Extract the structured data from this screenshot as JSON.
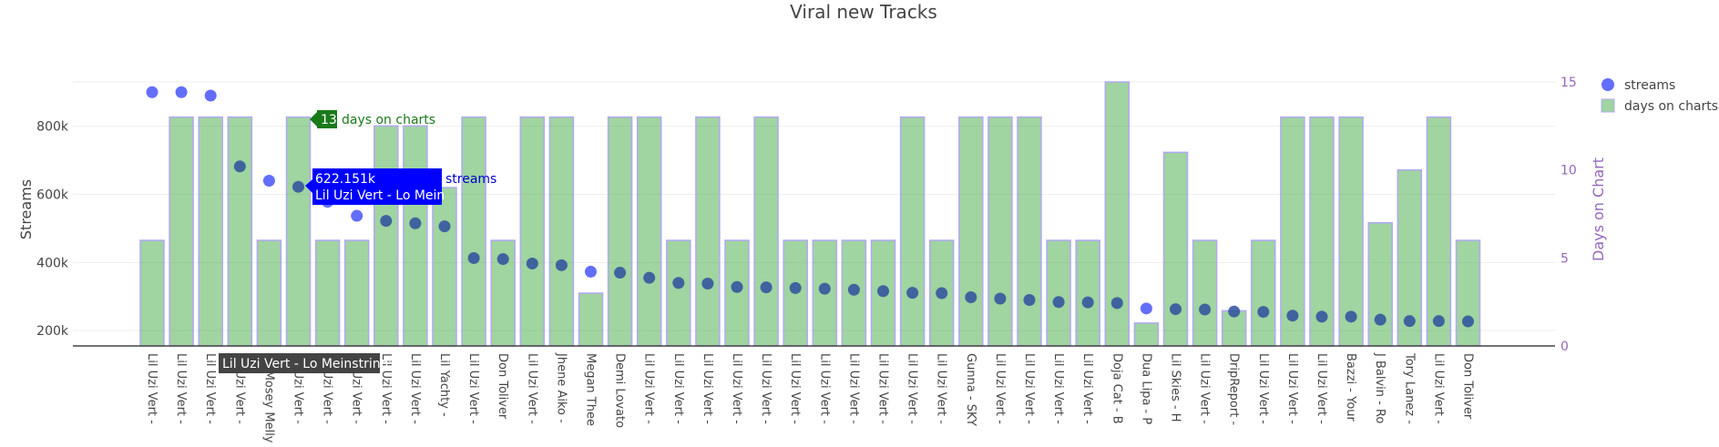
{
  "chart_data": {
    "type": "bar+scatter",
    "title": "Viral new Tracks",
    "xlabel": "",
    "ylabel": "Streams",
    "y2label": "Days on Chart",
    "ylim": [
      155000,
      930000
    ],
    "y2lim": [
      0,
      15
    ],
    "yticks": [
      200000,
      400000,
      600000,
      800000
    ],
    "ytick_labels": [
      "200k",
      "400k",
      "600k",
      "800k"
    ],
    "y2ticks": [
      0,
      5,
      10,
      15
    ],
    "y2tick_labels": [
      "0",
      "5",
      "10",
      "15"
    ],
    "grid": true,
    "legend_position": "top-right",
    "categories": [
      "Lil Uzi Vert -",
      "Lil Uzi Vert -",
      "Lil Uzi Vert -",
      "Lil Uzi Vert -",
      "Lil Mosey Melly -",
      "Lil Uzi Vert -",
      "Lil Uzi Vert -",
      "Lil Uzi Vert -",
      "Lil Uzi Vert -",
      "Lil Uzi Vert -",
      "Lil Yachty - ",
      "Lil Uzi Vert -",
      "Don Toliver",
      "Lil Uzi Vert -",
      "Jhene Aiko -",
      "Megan Thee",
      "Demi Lovato",
      "Lil Uzi Vert -",
      "Lil Uzi Vert -",
      "Lil Uzi Vert -",
      "Lil Uzi Vert -",
      "Lil Uzi Vert -",
      "Lil Uzi Vert -",
      "Lil Uzi Vert -",
      "Lil Uzi Vert -",
      "Lil Uzi Vert -",
      "Lil Uzi Vert -",
      "Lil Uzi Vert -",
      "Gunna - SKY",
      "Lil Uzi Vert -",
      "Lil Uzi Vert -",
      "Lil Uzi Vert -",
      "Lil Uzi Vert -",
      "Doja Cat - B",
      "Dua Lipa - P",
      "Lil Skies - H",
      "Lil Uzi Vert -",
      "DripReport -",
      "Lil Uzi Vert -",
      "Lil Uzi Vert -",
      "Lil Uzi Vert -",
      "Bazzi - Your",
      "J Balvin - Ro",
      "Tory Lanez -",
      "Lil Uzi Vert -",
      "Don Toliver"
    ],
    "series": [
      {
        "name": "days on charts",
        "type": "bar",
        "axis": "y2",
        "color": "#2ca02c",
        "values": [
          6,
          13,
          13,
          13,
          6,
          13,
          6,
          6,
          12.5,
          12.5,
          9,
          13,
          6,
          13,
          13,
          3,
          13,
          13,
          6,
          13,
          6,
          13,
          6,
          6,
          6,
          6,
          13,
          6,
          13,
          13,
          13,
          6,
          6,
          15,
          1.3,
          11,
          6,
          2,
          6,
          13,
          13,
          13,
          7,
          10,
          13,
          6
        ]
      },
      {
        "name": "streams",
        "type": "scatter",
        "axis": "y",
        "color": "#636efa",
        "values": [
          900000,
          900000,
          890000,
          682000,
          640000,
          622151,
          578000,
          537000,
          522000,
          515000,
          506000,
          413000,
          410000,
          397000,
          392000,
          373000,
          370000,
          355000,
          340000,
          338000,
          328000,
          327000,
          325000,
          323000,
          320000,
          316000,
          311000,
          310000,
          298000,
          294000,
          290000,
          284000,
          283000,
          281000,
          265000,
          263000,
          262000,
          256000,
          255000,
          244000,
          241000,
          241000,
          232000,
          228000,
          228000,
          227000
        ]
      }
    ],
    "legend": [
      "streams",
      "days on charts"
    ],
    "hover": {
      "bar_days": "13",
      "bar_label": "days on charts",
      "point_value": "622.151k",
      "point_track": "Lil Uzi Vert - Lo Mein",
      "point_series": "streams",
      "x_label": "Lil Uzi Vert - Lo Meinstring"
    }
  }
}
